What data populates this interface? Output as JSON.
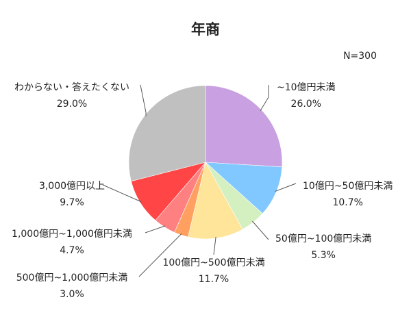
{
  "chart_data": {
    "type": "pie",
    "title": "年商",
    "note": "N=300",
    "slices": [
      {
        "label": "~10億円未満",
        "value": 26.0,
        "value_text": "26.0%",
        "color": "#c9a0e2"
      },
      {
        "label": "10億円~50億円未満",
        "value": 10.7,
        "value_text": "10.7%",
        "color": "#80c8ff"
      },
      {
        "label": "50億円~100億円未満",
        "value": 5.3,
        "value_text": "5.3%",
        "color": "#d4f0c0"
      },
      {
        "label": "100億円~500億円未満",
        "value": 11.7,
        "value_text": "11.7%",
        "color": "#ffe599"
      },
      {
        "label": "500億円~1,000億円未満",
        "value": 3.0,
        "value_text": "3.0%",
        "color": "#ffa060"
      },
      {
        "label": "1,000億円~1,000億円未満",
        "value": 4.7,
        "value_text": "4.7%",
        "color": "#ff8080"
      },
      {
        "label": "3,000億円以上",
        "value": 9.7,
        "value_text": "9.7%",
        "color": "#ff4545"
      },
      {
        "label": "わからない・答えたくない",
        "value": 29.0,
        "value_text": "29.0%",
        "color": "#c0c0c0"
      }
    ]
  }
}
